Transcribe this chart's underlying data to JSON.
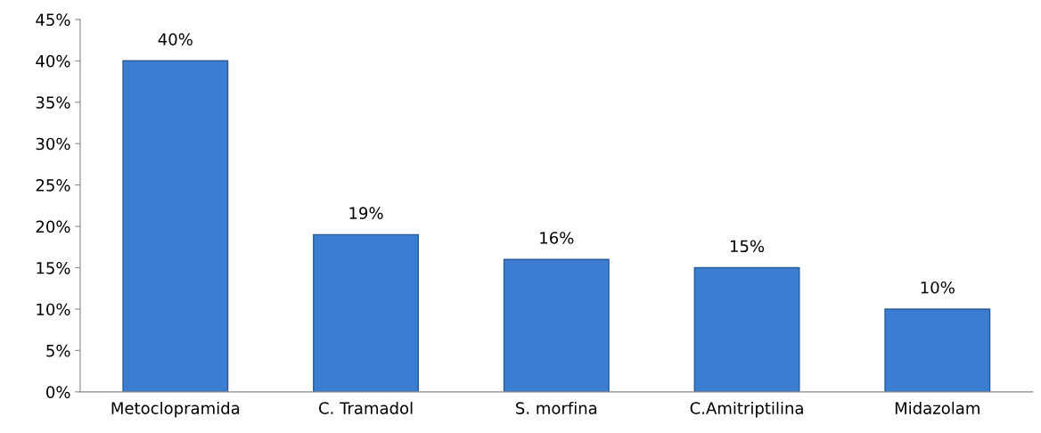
{
  "chart_data": {
    "type": "bar",
    "categories": [
      "Metoclopramida",
      "C. Tramadol",
      "S. morfina",
      "C.Amitriptilina",
      "Midazolam"
    ],
    "values": [
      40,
      19,
      16,
      15,
      10
    ],
    "value_labels": [
      "40%",
      "19%",
      "16%",
      "15%",
      "10%"
    ],
    "color": "#3b7dd0",
    "ylim": [
      0,
      45
    ],
    "yticks": [
      {
        "value": 0,
        "label": "0%"
      },
      {
        "value": 5,
        "label": "5%"
      },
      {
        "value": 10,
        "label": "10%"
      },
      {
        "value": 15,
        "label": "15%"
      },
      {
        "value": 20,
        "label": "20%"
      },
      {
        "value": 25,
        "label": "25%"
      },
      {
        "value": 30,
        "label": "30%"
      },
      {
        "value": 35,
        "label": "35%"
      },
      {
        "value": 40,
        "label": "40%"
      },
      {
        "value": 45,
        "label": "45%"
      }
    ],
    "grid": false
  }
}
